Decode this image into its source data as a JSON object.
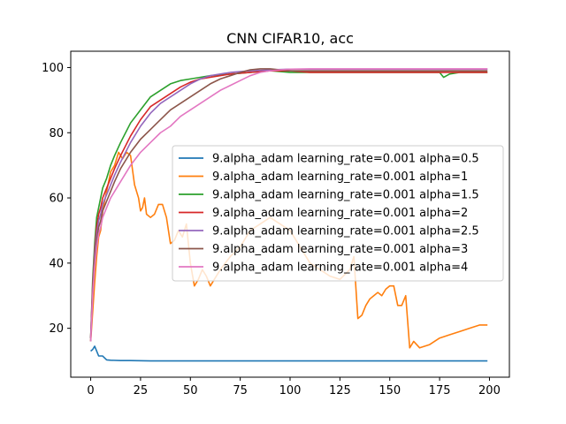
{
  "chart_data": {
    "type": "line",
    "title": "CNN CIFAR10, acc",
    "xlabel": "",
    "ylabel": "",
    "xlim": [
      -10,
      210
    ],
    "ylim": [
      5,
      105
    ],
    "xticks": [
      0,
      25,
      50,
      75,
      100,
      125,
      150,
      175,
      200
    ],
    "yticks": [
      20,
      40,
      60,
      80,
      100
    ],
    "grid": false,
    "legend_position": "center-right",
    "series": [
      {
        "name": "9.alpha_adam learning_rate=0.001 alpha=0.5",
        "color": "#1f77b4",
        "x": [
          0,
          1,
          2,
          3,
          4,
          5,
          6,
          8,
          10,
          15,
          20,
          30,
          40,
          50,
          60,
          80,
          100,
          120,
          140,
          160,
          180,
          199
        ],
        "y": [
          13,
          13.5,
          14.5,
          13,
          11.5,
          11.5,
          11.5,
          10.3,
          10.2,
          10.1,
          10.1,
          10,
          10,
          10,
          10,
          10,
          10,
          10,
          10,
          10,
          10,
          10
        ]
      },
      {
        "name": "9.alpha_adam learning_rate=0.001 alpha=1",
        "color": "#ff7f0e",
        "x": [
          0,
          1,
          2,
          3,
          4,
          5,
          6,
          8,
          10,
          12,
          14,
          16,
          18,
          20,
          22,
          24,
          25,
          26,
          27,
          28,
          30,
          32,
          34,
          36,
          38,
          40,
          42,
          44,
          46,
          48,
          50,
          52,
          54,
          56,
          58,
          60,
          62,
          65,
          70,
          75,
          80,
          85,
          90,
          95,
          100,
          105,
          110,
          115,
          120,
          125,
          130,
          132,
          134,
          136,
          138,
          140,
          142,
          144,
          146,
          148,
          150,
          152,
          154,
          156,
          158,
          160,
          162,
          165,
          170,
          175,
          180,
          185,
          190,
          195,
          199
        ],
        "y": [
          16,
          25,
          34,
          42,
          48,
          50,
          56,
          62,
          68,
          70,
          74,
          72,
          74,
          73,
          64,
          60,
          56,
          57,
          60,
          55,
          54,
          55,
          58,
          58,
          54,
          46,
          47,
          50,
          48,
          52,
          40,
          33,
          35,
          38,
          36,
          33,
          35,
          38,
          42,
          45,
          50,
          52,
          54,
          52,
          50,
          45,
          40,
          38,
          36,
          35,
          38,
          42,
          23,
          24,
          27,
          29,
          30,
          31,
          30,
          32,
          33,
          33,
          27,
          27,
          30,
          14,
          16,
          14,
          15,
          17,
          18,
          19,
          20,
          21,
          21
        ]
      },
      {
        "name": "9.alpha_adam learning_rate=0.001 alpha=1.5",
        "color": "#2ca02c",
        "x": [
          0,
          1,
          2,
          3,
          4,
          5,
          6,
          8,
          10,
          12,
          15,
          20,
          25,
          30,
          35,
          40,
          45,
          50,
          55,
          60,
          70,
          80,
          90,
          100,
          110,
          120,
          130,
          140,
          150,
          160,
          170,
          175,
          177,
          180,
          185,
          190,
          195,
          199
        ],
        "y": [
          17,
          35,
          46,
          54,
          57,
          60,
          63,
          66,
          70,
          73,
          77,
          83,
          87,
          91,
          93,
          95,
          96,
          96.5,
          97,
          97.5,
          98,
          98.5,
          99,
          98.5,
          98.5,
          98.5,
          98.5,
          98.5,
          98.5,
          98.5,
          98.5,
          98.5,
          97,
          98,
          98.5,
          98.5,
          98.5,
          98.5
        ]
      },
      {
        "name": "9.alpha_adam learning_rate=0.001 alpha=2",
        "color": "#d62728",
        "x": [
          0,
          1,
          2,
          3,
          4,
          5,
          6,
          8,
          10,
          12,
          15,
          20,
          25,
          30,
          35,
          40,
          45,
          50,
          55,
          60,
          70,
          80,
          90,
          100,
          110,
          120,
          130,
          140,
          150,
          160,
          170,
          180,
          190,
          199
        ],
        "y": [
          17,
          33,
          44,
          51,
          55,
          57,
          60,
          63,
          66,
          69,
          73,
          79,
          84,
          88,
          90,
          92,
          94,
          95.5,
          96.5,
          97,
          98,
          98.5,
          99,
          99,
          98.5,
          98.5,
          98.5,
          98.5,
          98.5,
          98.5,
          98.5,
          98.5,
          98.5,
          98.5
        ]
      },
      {
        "name": "9.alpha_adam learning_rate=0.001 alpha=2.5",
        "color": "#9467bd",
        "x": [
          0,
          1,
          2,
          3,
          4,
          5,
          6,
          8,
          10,
          12,
          15,
          20,
          25,
          30,
          35,
          40,
          45,
          50,
          55,
          60,
          65,
          70,
          80,
          90,
          100,
          120,
          140,
          160,
          180,
          199
        ],
        "y": [
          17,
          32,
          43,
          49,
          53,
          55,
          58,
          61,
          64,
          67,
          71,
          77,
          82,
          86,
          89,
          91,
          93,
          95,
          96.5,
          97.5,
          98,
          98.5,
          99,
          99.3,
          99.5,
          99.5,
          99.5,
          99.5,
          99.5,
          99.5
        ]
      },
      {
        "name": "9.alpha_adam learning_rate=0.001 alpha=3",
        "color": "#8c564b",
        "x": [
          0,
          1,
          2,
          3,
          4,
          5,
          6,
          8,
          10,
          12,
          15,
          20,
          25,
          30,
          35,
          40,
          45,
          50,
          55,
          60,
          65,
          70,
          75,
          80,
          85,
          90,
          95,
          100,
          120,
          140,
          160,
          180,
          199
        ],
        "y": [
          16,
          31,
          41,
          47,
          51,
          53,
          56,
          59,
          62,
          65,
          69,
          74,
          78,
          81,
          84,
          87,
          89,
          91,
          93,
          95,
          96.5,
          97.5,
          98.5,
          99.3,
          99.6,
          99.6,
          99.3,
          99,
          99,
          99,
          99,
          99,
          99
        ]
      },
      {
        "name": "9.alpha_adam learning_rate=0.001 alpha=4",
        "color": "#e377c2",
        "x": [
          0,
          1,
          2,
          3,
          4,
          5,
          6,
          8,
          10,
          12,
          15,
          20,
          25,
          30,
          35,
          40,
          45,
          50,
          55,
          60,
          65,
          70,
          75,
          80,
          85,
          90,
          95,
          100,
          110,
          120,
          140,
          160,
          180,
          199
        ],
        "y": [
          16,
          30,
          39,
          45,
          49,
          51,
          54,
          57,
          60,
          62,
          65,
          70,
          74,
          77,
          80,
          82,
          85,
          87,
          89,
          91,
          93,
          94.5,
          96,
          97.5,
          98.5,
          99,
          99.3,
          99.5,
          99.6,
          99.6,
          99.6,
          99.6,
          99.6,
          99.6
        ]
      }
    ]
  }
}
